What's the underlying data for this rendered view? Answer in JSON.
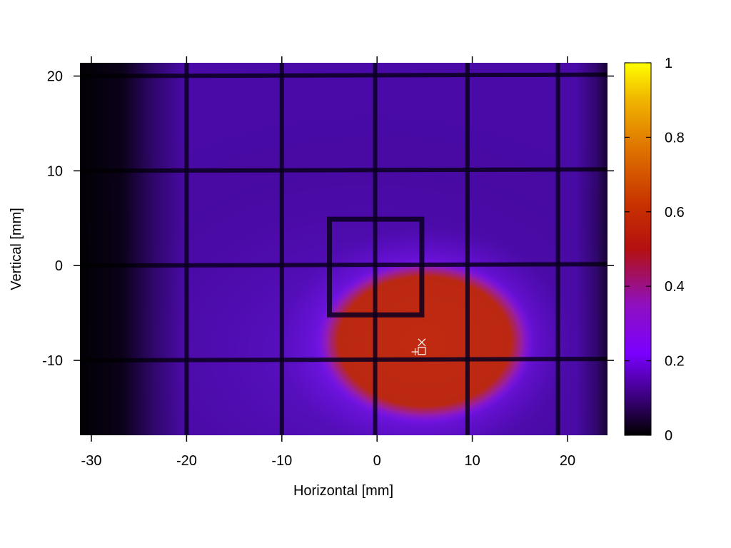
{
  "chart_data": {
    "type": "heatmap",
    "title": "",
    "xlabel": "Horizontal [mm]",
    "ylabel": "Vertical [mm]",
    "xlim": [
      -31.2,
      24.2
    ],
    "ylim": [
      -17.9,
      21.4
    ],
    "x_ticks": [
      -30,
      -20,
      -10,
      0,
      10,
      20
    ],
    "y_ticks": [
      -10,
      0,
      10,
      20
    ],
    "colorbar": {
      "range": [
        0,
        1
      ],
      "ticks": [
        0,
        0.2,
        0.4,
        0.6,
        0.8,
        1
      ],
      "colormap": [
        "#000000",
        "#3a007a",
        "#7a00ff",
        "#b41010",
        "#c83200",
        "#e07800",
        "#f0b400",
        "#ffff00"
      ]
    },
    "grid_wires": {
      "vertical_mm": [
        -20,
        -10,
        -0.2,
        9.5,
        19
      ],
      "horizontal_mm": [
        20,
        10,
        0,
        -10
      ]
    },
    "inner_box_mm": {
      "x": [
        -5,
        4.7
      ],
      "y": [
        -5.2,
        4.9
      ]
    },
    "beam_spot": {
      "center_mm": [
        5,
        -8
      ],
      "half_width_mm": [
        10.5,
        7.8
      ],
      "peak_intensity": 0.52,
      "background_intensity": 0.24,
      "color": "#c02a10"
    },
    "markers": [
      {
        "symbol": "+",
        "x": 4,
        "y": -9.1
      },
      {
        "symbol": "×",
        "x": 4.7,
        "y": -8.1
      },
      {
        "symbol": "□",
        "x": 4.7,
        "y": -9
      }
    ]
  }
}
